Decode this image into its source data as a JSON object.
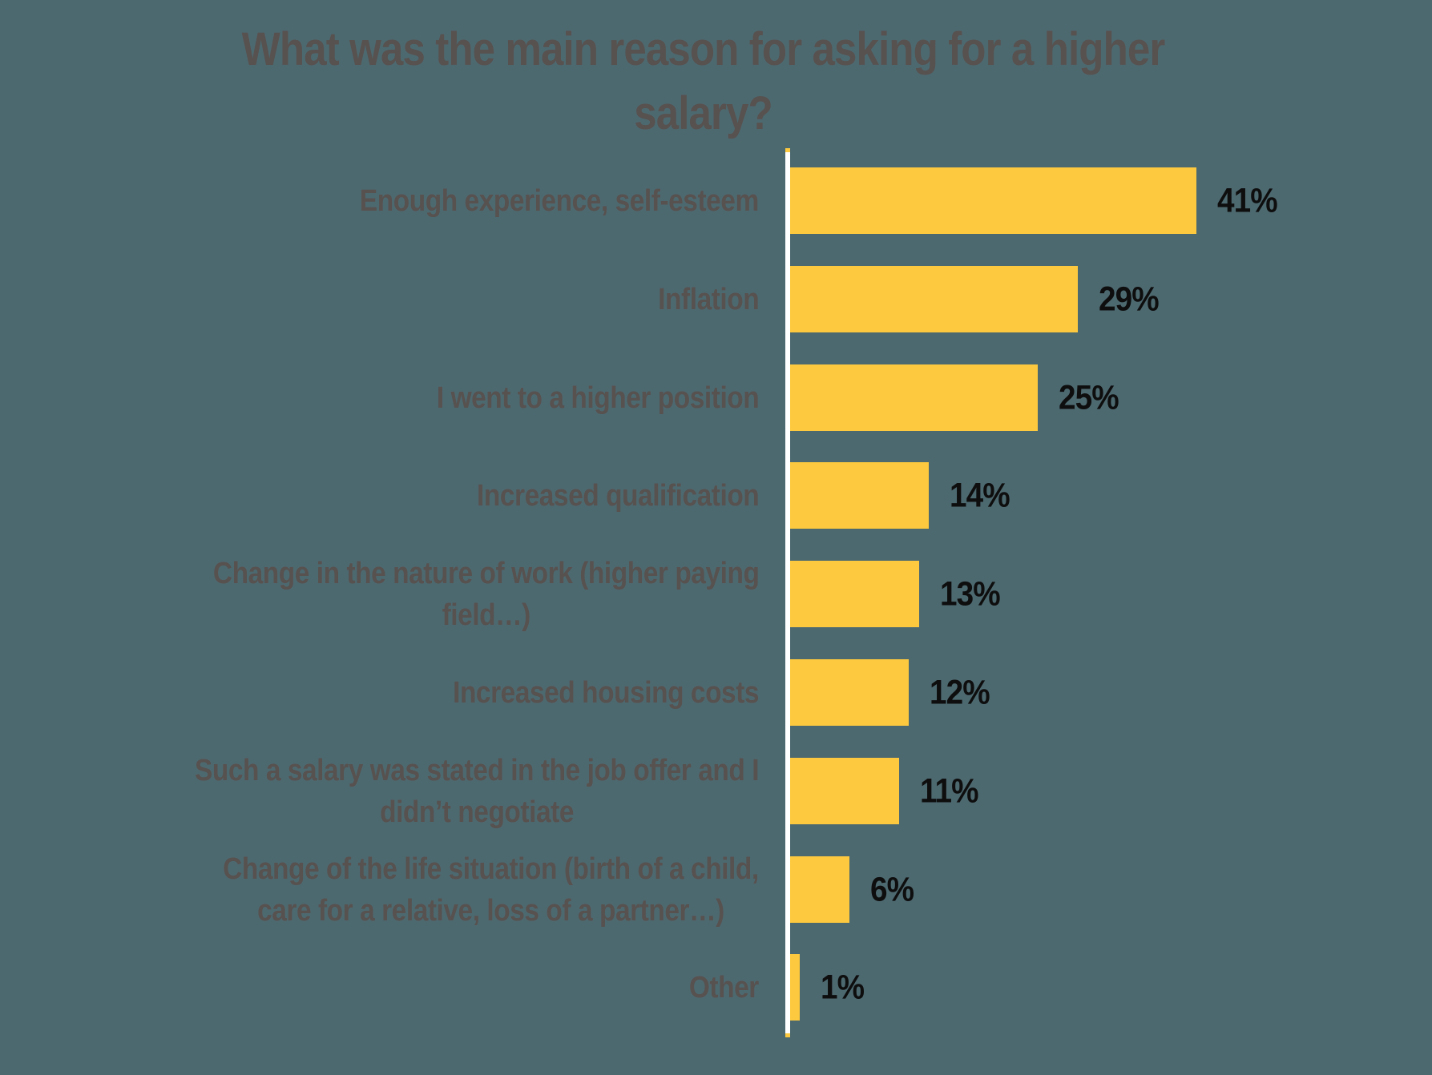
{
  "page": {
    "background_color": "#4d6970"
  },
  "title": {
    "text": "What was the main reason for asking for a higher salary?",
    "lines": [
      "What was the main reason for asking for a higher",
      "salary?"
    ],
    "color": "#57514f"
  },
  "chart_data": {
    "type": "bar",
    "orientation": "horizontal",
    "title": "What was the main reason for asking for a higher salary?",
    "categories": [
      "Enough experience, self-esteem",
      "Inflation",
      "I went to a higher position",
      "Increased qualification",
      "Change in the nature of work (higher paying field…)",
      "Increased housing costs",
      "Such a salary was stated in the job offer and I didn’t negotiate",
      "Change of the life situation (birth of a child, care for a relative, loss of a partner…)",
      "Other"
    ],
    "category_label_lines": [
      [
        "Enough experience, self-esteem"
      ],
      [
        "Inflation"
      ],
      [
        "I went to a higher position"
      ],
      [
        "Increased qualification"
      ],
      [
        "Change in the nature of work (higher paying",
        "field…)"
      ],
      [
        "Increased housing costs"
      ],
      [
        "Such a salary was stated in the job offer and I",
        "didn’t negotiate"
      ],
      [
        "Change of the life situation (birth of a child,",
        "care for a relative, loss of a partner…)"
      ],
      [
        "Other"
      ]
    ],
    "values": [
      41,
      29,
      25,
      14,
      13,
      12,
      11,
      6,
      1
    ],
    "unit": "%",
    "data_labels": [
      "41%",
      "29%",
      "25%",
      "14%",
      "13%",
      "12%",
      "11%",
      "6%",
      "1%"
    ],
    "legend": "none",
    "grid": false,
    "x_axis": {
      "ticks_visible": false,
      "baseline_visible": true
    },
    "xlim": [
      0,
      41
    ],
    "colors": {
      "bar": "#fdc93e",
      "axis_line": "#ffffff",
      "category_label": "#57514f",
      "data_label": "#0e0e0e",
      "background": "#4d6970"
    }
  }
}
